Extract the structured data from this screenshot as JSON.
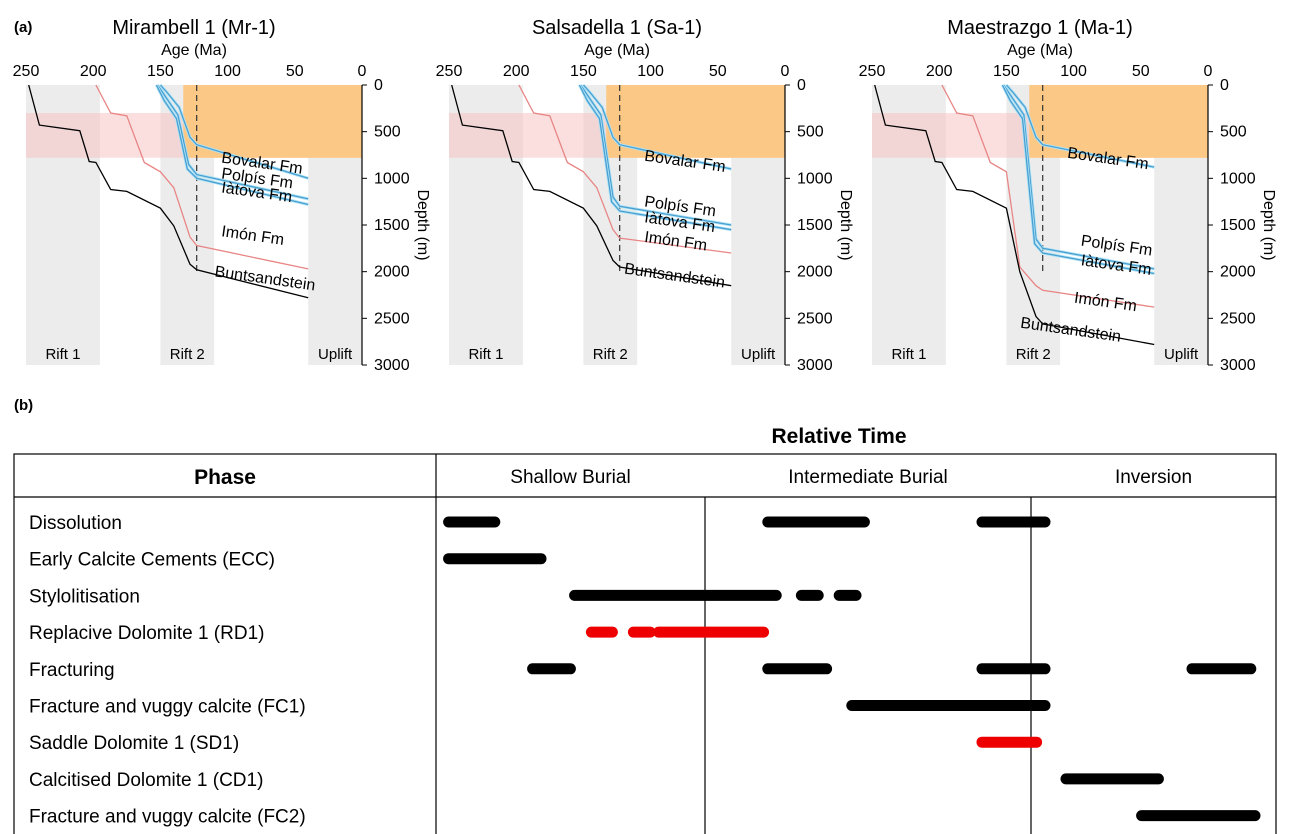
{
  "panel_a": {
    "label": "(a)",
    "age_axis_label": "Age (Ma)",
    "depth_axis_label": "Depth (m)",
    "age_ticks": [
      "250",
      "200",
      "150",
      "100",
      "50",
      "0"
    ],
    "depth_ticks": [
      "0",
      "500",
      "1000",
      "1500",
      "2000",
      "2500",
      "3000"
    ],
    "stage_labels": [
      "Rift 1",
      "Rift 2",
      "Uplift"
    ]
  },
  "panel_b": {
    "label": "(b)",
    "relative_time_label": "Relative Time",
    "phase_header": "Phase",
    "period_headers": [
      "Shallow Burial",
      "Intermediate Burial",
      "Inversion"
    ]
  },
  "chart_data": [
    {
      "type": "line",
      "title": "Mirambell 1 (Mr-1)",
      "xlabel": "Age (Ma)",
      "ylabel": "Depth (m)",
      "xlim": [
        250,
        0
      ],
      "ylim": [
        3000,
        0
      ],
      "shaded_periods": [
        {
          "label": "Rift 1",
          "x": [
            250,
            195
          ]
        },
        {
          "label": "Rift 2",
          "x": [
            150,
            110
          ]
        },
        {
          "label": "Uplift",
          "x": [
            40,
            0
          ]
        }
      ],
      "marker_age": 123,
      "deposit_band": {
        "x": [
          133,
          0
        ],
        "y": [
          0,
          780
        ]
      },
      "depth_band": {
        "y": [
          300,
          780
        ]
      },
      "series": [
        {
          "name": "Bovalar Fm",
          "color": "#4a9fd1",
          "x": [
            150,
            145,
            136,
            128,
            123,
            40
          ],
          "y": [
            0,
            80,
            240,
            560,
            640,
            1000
          ],
          "label_x": 105,
          "label_y": 830
        },
        {
          "name": "Polpís Fm",
          "color": "#4a9fd1",
          "x": [
            152,
            146,
            137,
            129,
            123,
            40
          ],
          "y": [
            0,
            130,
            320,
            850,
            960,
            1220
          ],
          "label_x": 105,
          "label_y": 1000
        },
        {
          "name": "Iàtova Fm",
          "color": "#4a9fd1",
          "x": [
            153,
            147,
            138,
            130,
            123,
            40
          ],
          "y": [
            0,
            170,
            360,
            900,
            1000,
            1280
          ],
          "label_x": 105,
          "label_y": 1150
        },
        {
          "name": "Imón Fm",
          "color": "#e88585",
          "x": [
            198,
            187,
            175,
            162,
            150,
            140,
            128,
            123,
            40
          ],
          "y": [
            0,
            300,
            330,
            830,
            930,
            1100,
            1630,
            1720,
            1970
          ],
          "label_x": 105,
          "label_y": 1620
        },
        {
          "name": "Buntsandstein",
          "color": "#000000",
          "x": [
            248,
            240,
            210,
            203,
            198,
            187,
            175,
            150,
            140,
            128,
            123,
            40
          ],
          "y": [
            0,
            430,
            490,
            820,
            830,
            1120,
            1140,
            1320,
            1510,
            1920,
            1980,
            2280
          ],
          "label_x": 110,
          "label_y": 2050
        }
      ]
    },
    {
      "type": "line",
      "title": "Salsadella 1 (Sa-1)",
      "xlabel": "Age (Ma)",
      "ylabel": "Depth (m)",
      "xlim": [
        250,
        0
      ],
      "ylim": [
        3000,
        0
      ],
      "shaded_periods": [
        {
          "label": "Rift 1",
          "x": [
            250,
            195
          ]
        },
        {
          "label": "Rift 2",
          "x": [
            150,
            110
          ]
        },
        {
          "label": "Uplift",
          "x": [
            40,
            0
          ]
        }
      ],
      "marker_age": 123,
      "deposit_band": {
        "x": [
          133,
          0
        ],
        "y": [
          0,
          780
        ]
      },
      "depth_band": {
        "y": [
          300,
          780
        ]
      },
      "series": [
        {
          "name": "Bovalar Fm",
          "color": "#4a9fd1",
          "x": [
            150,
            145,
            136,
            128,
            123,
            40
          ],
          "y": [
            0,
            80,
            240,
            560,
            640,
            900
          ],
          "label_x": 105,
          "label_y": 810
        },
        {
          "name": "Polpís Fm",
          "color": "#4a9fd1",
          "x": [
            152,
            146,
            137,
            128,
            123,
            40
          ],
          "y": [
            0,
            130,
            320,
            1200,
            1300,
            1500
          ],
          "label_x": 105,
          "label_y": 1300
        },
        {
          "name": "Iàtova Fm",
          "color": "#4a9fd1",
          "x": [
            153,
            147,
            138,
            129,
            123,
            40
          ],
          "y": [
            0,
            170,
            360,
            1250,
            1350,
            1550
          ],
          "label_x": 105,
          "label_y": 1470
        },
        {
          "name": "Imón Fm",
          "color": "#e88585",
          "x": [
            198,
            187,
            175,
            162,
            150,
            140,
            128,
            123,
            40
          ],
          "y": [
            0,
            300,
            330,
            830,
            930,
            1100,
            1550,
            1640,
            1800
          ],
          "label_x": 105,
          "label_y": 1680
        },
        {
          "name": "Buntsandstein",
          "color": "#000000",
          "x": [
            248,
            240,
            210,
            203,
            198,
            187,
            175,
            150,
            140,
            128,
            123,
            40
          ],
          "y": [
            0,
            430,
            490,
            820,
            830,
            1120,
            1140,
            1320,
            1510,
            1880,
            1950,
            2150
          ],
          "label_x": 120,
          "label_y": 2020
        }
      ]
    },
    {
      "type": "line",
      "title": "Maestrazgo 1 (Ma-1)",
      "xlabel": "Age (Ma)",
      "ylabel": "Depth (m)",
      "xlim": [
        250,
        0
      ],
      "ylim": [
        3000,
        0
      ],
      "shaded_periods": [
        {
          "label": "Rift 1",
          "x": [
            250,
            195
          ]
        },
        {
          "label": "Rift 2",
          "x": [
            150,
            110
          ]
        },
        {
          "label": "Uplift",
          "x": [
            40,
            0
          ]
        }
      ],
      "marker_age": 123,
      "deposit_band": {
        "x": [
          133,
          0
        ],
        "y": [
          0,
          780
        ]
      },
      "depth_band": {
        "y": [
          300,
          780
        ]
      },
      "series": [
        {
          "name": "Bovalar Fm",
          "color": "#4a9fd1",
          "x": [
            150,
            145,
            136,
            128,
            123,
            40
          ],
          "y": [
            0,
            80,
            240,
            560,
            640,
            880
          ],
          "label_x": 105,
          "label_y": 780
        },
        {
          "name": "Polpís Fm",
          "color": "#4a9fd1",
          "x": [
            152,
            146,
            137,
            128,
            123,
            40
          ],
          "y": [
            0,
            130,
            320,
            1650,
            1750,
            1970
          ],
          "label_x": 95,
          "label_y": 1720
        },
        {
          "name": "Iàtova Fm",
          "color": "#4a9fd1",
          "x": [
            153,
            147,
            138,
            129,
            123,
            40
          ],
          "y": [
            0,
            170,
            360,
            1700,
            1800,
            2020
          ],
          "label_x": 95,
          "label_y": 1930
        },
        {
          "name": "Imón Fm",
          "color": "#e88585",
          "x": [
            198,
            187,
            175,
            162,
            150,
            140,
            128,
            123,
            40
          ],
          "y": [
            0,
            300,
            330,
            830,
            930,
            1950,
            2150,
            2200,
            2380
          ],
          "label_x": 100,
          "label_y": 2330
        },
        {
          "name": "Buntsandstein",
          "color": "#000000",
          "x": [
            248,
            240,
            210,
            203,
            198,
            187,
            175,
            150,
            140,
            128,
            123,
            40
          ],
          "y": [
            0,
            430,
            490,
            820,
            830,
            1120,
            1140,
            1320,
            2000,
            2480,
            2560,
            2780
          ],
          "label_x": 140,
          "label_y": 2600
        }
      ]
    },
    {
      "type": "table",
      "title": "Relative Time",
      "columns": [
        "Phase",
        "Shallow Burial",
        "Intermediate Burial",
        "Inversion"
      ],
      "time_range": [
        0,
        100
      ],
      "rows": [
        {
          "phase": "Dissolution",
          "segments": [
            {
              "start": 1.5,
              "end": 7,
              "color": "#000000"
            },
            {
              "start": 39.5,
              "end": 51,
              "color": "#000000"
            },
            {
              "start": 65,
              "end": 72.5,
              "color": "#000000"
            }
          ]
        },
        {
          "phase": "Early Calcite Cements (ECC)",
          "segments": [
            {
              "start": 1.5,
              "end": 12.5,
              "color": "#000000"
            }
          ]
        },
        {
          "phase": "Stylolitisation",
          "segments": [
            {
              "start": 16.5,
              "end": 40.5,
              "color": "#000000"
            },
            {
              "start": 43.5,
              "end": 45.5,
              "color": "#000000"
            },
            {
              "start": 48,
              "end": 50,
              "color": "#000000"
            }
          ]
        },
        {
          "phase": "Replacive Dolomite 1 (RD1)",
          "segments": [
            {
              "start": 18.5,
              "end": 21,
              "color": "#ee0000"
            },
            {
              "start": 23.5,
              "end": 25.5,
              "color": "#ee0000"
            },
            {
              "start": 26.5,
              "end": 39,
              "color": "#ee0000"
            }
          ]
        },
        {
          "phase": "Fracturing",
          "segments": [
            {
              "start": 11.5,
              "end": 16,
              "color": "#000000"
            },
            {
              "start": 39.5,
              "end": 46.5,
              "color": "#000000"
            },
            {
              "start": 65,
              "end": 72.5,
              "color": "#000000"
            },
            {
              "start": 90,
              "end": 97,
              "color": "#000000"
            }
          ]
        },
        {
          "phase": "Fracture and vuggy calcite (FC1)",
          "segments": [
            {
              "start": 49.5,
              "end": 72.5,
              "color": "#000000"
            }
          ]
        },
        {
          "phase": "Saddle Dolomite 1 (SD1)",
          "segments": [
            {
              "start": 65,
              "end": 71.5,
              "color": "#ee0000"
            }
          ]
        },
        {
          "phase": "Calcitised Dolomite 1 (CD1)",
          "segments": [
            {
              "start": 75,
              "end": 86,
              "color": "#000000"
            }
          ]
        },
        {
          "phase": "Fracture and vuggy calcite (FC2)",
          "segments": [
            {
              "start": 84,
              "end": 97.5,
              "color": "#000000"
            }
          ]
        }
      ]
    }
  ]
}
